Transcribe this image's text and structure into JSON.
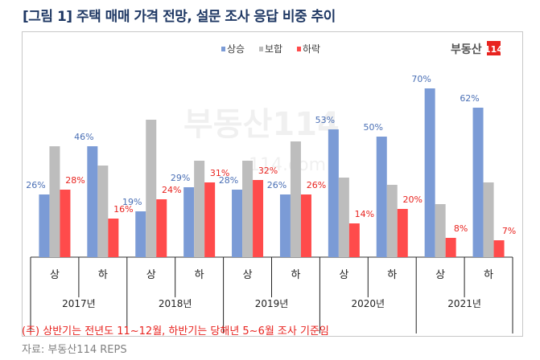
{
  "title": "[그림 1] 주택 매매 가격 전망, 설문 조사 응답 비중 추이",
  "logo": {
    "text": "부동산",
    "badge": "114"
  },
  "watermark": {
    "text": "부동산114",
    "url": "r114.com"
  },
  "note": "(주) 상반기는 전년도 11~12월, 하반기는 당해년 5~6월 조사 기준임",
  "source": "자료: 부동산114 REPS",
  "chart_data": {
    "type": "bar",
    "title": "",
    "legend_position": "top-center",
    "categories": [
      "상",
      "하",
      "상",
      "하",
      "상",
      "하",
      "상",
      "하",
      "상",
      "하"
    ],
    "groups": [
      "2017년",
      "2018년",
      "2019년",
      "2020년",
      "2021년"
    ],
    "ylim": [
      0,
      75
    ],
    "series": [
      {
        "name": "상승",
        "color": "#7b9bd6",
        "labeled": true,
        "label_color": "#4a6fb5",
        "values": [
          26,
          46,
          19,
          29,
          28,
          26,
          53,
          50,
          70,
          62
        ]
      },
      {
        "name": "보합",
        "color": "#bdbdbd",
        "labeled": false,
        "values": [
          46,
          38,
          57,
          40,
          40,
          48,
          33,
          30,
          22,
          31
        ]
      },
      {
        "name": "하락",
        "color": "#ff4b4b",
        "labeled": true,
        "label_color": "#e8231f",
        "values": [
          28,
          16,
          24,
          31,
          32,
          26,
          14,
          20,
          8,
          7
        ]
      }
    ]
  }
}
